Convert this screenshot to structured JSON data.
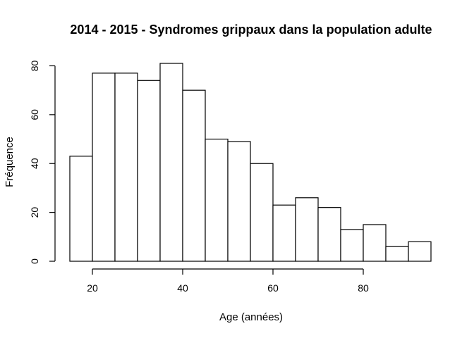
{
  "chart_data": {
    "type": "bar",
    "title": "2014 - 2015 - Syndromes grippaux dans la population adulte",
    "xlabel": "Age (années)",
    "ylabel": "Fréquence",
    "bins": [
      {
        "start": 15,
        "end": 20,
        "count": 43
      },
      {
        "start": 20,
        "end": 25,
        "count": 77
      },
      {
        "start": 25,
        "end": 30,
        "count": 77
      },
      {
        "start": 30,
        "end": 35,
        "count": 74
      },
      {
        "start": 35,
        "end": 40,
        "count": 81
      },
      {
        "start": 40,
        "end": 45,
        "count": 70
      },
      {
        "start": 45,
        "end": 50,
        "count": 50
      },
      {
        "start": 50,
        "end": 55,
        "count": 49
      },
      {
        "start": 55,
        "end": 60,
        "count": 40
      },
      {
        "start": 60,
        "end": 65,
        "count": 23
      },
      {
        "start": 65,
        "end": 70,
        "count": 26
      },
      {
        "start": 70,
        "end": 75,
        "count": 22
      },
      {
        "start": 75,
        "end": 80,
        "count": 13
      },
      {
        "start": 80,
        "end": 85,
        "count": 15
      },
      {
        "start": 85,
        "end": 90,
        "count": 6
      },
      {
        "start": 90,
        "end": 95,
        "count": 8
      }
    ],
    "xlim": [
      15,
      95
    ],
    "ylim": [
      0,
      81
    ],
    "x_ticks": [
      20,
      40,
      60,
      80
    ],
    "y_ticks": [
      0,
      20,
      40,
      60,
      80
    ],
    "bar_fill": "#ffffff",
    "bar_stroke": "#000000",
    "grid": false
  }
}
